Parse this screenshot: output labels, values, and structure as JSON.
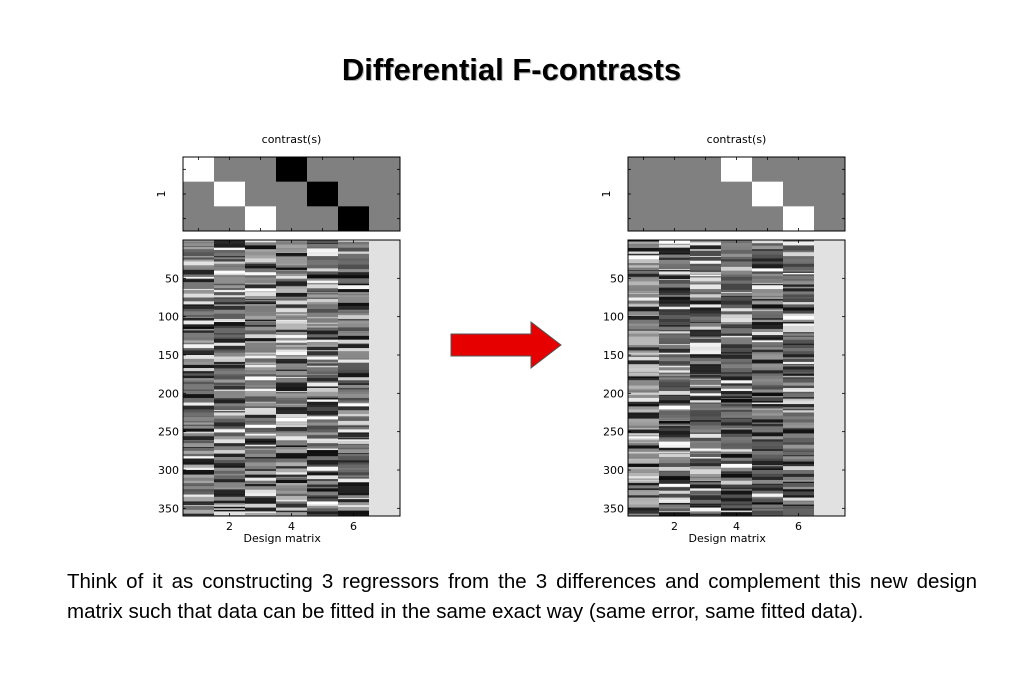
{
  "slide": {
    "title": "Differential F-contrasts",
    "caption": "Think of it as constructing 3 regressors from the 3 differences and complement this new design matrix such that data can be fitted in the same exact way (same error, same fitted data)."
  },
  "arrow": {
    "color": "#e60000",
    "direction": "right"
  },
  "panels": [
    {
      "contrast_label": "contrast(s)",
      "contrast_ytick": "1",
      "contrast_matrix": [
        [
          1,
          0,
          0,
          -1,
          0,
          0,
          0
        ],
        [
          0,
          1,
          0,
          0,
          -1,
          0,
          0
        ],
        [
          0,
          0,
          1,
          0,
          0,
          -1,
          0
        ]
      ],
      "xlabel": "Design matrix",
      "xticks": [
        "2",
        "4",
        "6"
      ],
      "yticks": [
        "50",
        "100",
        "150",
        "200",
        "250",
        "300",
        "350"
      ],
      "columns": 7
    },
    {
      "contrast_label": "contrast(s)",
      "contrast_ytick": "1",
      "contrast_matrix": [
        [
          0,
          0,
          0,
          1,
          0,
          0,
          0
        ],
        [
          0,
          0,
          0,
          0,
          1,
          0,
          0
        ],
        [
          0,
          0,
          0,
          0,
          0,
          1,
          0
        ]
      ],
      "xlabel": "Design matrix",
      "xticks": [
        "2",
        "4",
        "6"
      ],
      "yticks": [
        "50",
        "100",
        "150",
        "200",
        "250",
        "300",
        "350"
      ],
      "columns": 7
    }
  ]
}
